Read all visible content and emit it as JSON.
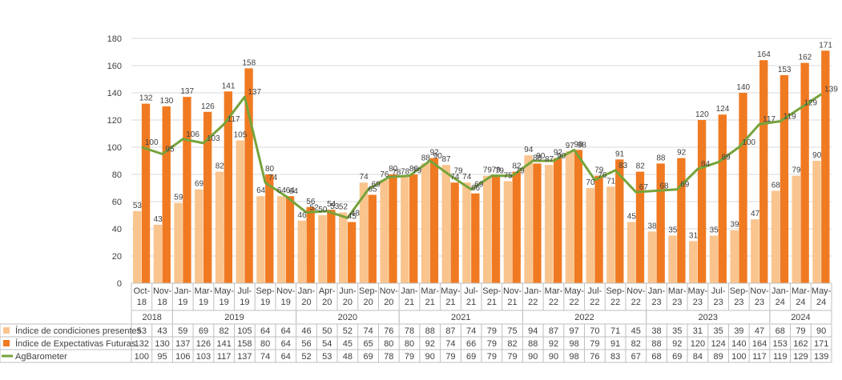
{
  "chart_data": {
    "type": "bar",
    "title": "",
    "xlabel": "",
    "ylabel": "",
    "ylim": [
      0,
      180
    ],
    "yticks": [
      0,
      20,
      40,
      60,
      80,
      100,
      120,
      140,
      160,
      180
    ],
    "grid": true,
    "categories": [
      [
        "Oct-",
        "18"
      ],
      [
        "Nov-",
        "18"
      ],
      [
        "Jan-",
        "19"
      ],
      [
        "Mar-",
        "19"
      ],
      [
        "May-",
        "19"
      ],
      [
        "Jul-",
        "19"
      ],
      [
        "Sep-",
        "19"
      ],
      [
        "Nov-",
        "19"
      ],
      [
        "Jan-",
        "20"
      ],
      [
        "Apr-",
        "20"
      ],
      [
        "Jun-",
        "20"
      ],
      [
        "Sep-",
        "20"
      ],
      [
        "Nov-",
        "20"
      ],
      [
        "Jan-",
        "21"
      ],
      [
        "Mar-",
        "21"
      ],
      [
        "May-",
        "21"
      ],
      [
        "Jul-",
        "21"
      ],
      [
        "Sep-",
        "21"
      ],
      [
        "Nov-",
        "21"
      ],
      [
        "Jan-",
        "22"
      ],
      [
        "Mar-",
        "22"
      ],
      [
        "May-",
        "22"
      ],
      [
        "Jul-",
        "22"
      ],
      [
        "Sep-",
        "22"
      ],
      [
        "Nov-",
        "22"
      ],
      [
        "Jan-",
        "23"
      ],
      [
        "Mar-",
        "23"
      ],
      [
        "May-",
        "23"
      ],
      [
        "Jul-",
        "23"
      ],
      [
        "Sep-",
        "23"
      ],
      [
        "Nov-",
        "23"
      ],
      [
        "Jan-",
        "24"
      ],
      [
        "Mar-",
        "24"
      ],
      [
        "May-",
        "24"
      ]
    ],
    "years": [
      {
        "label": "2018",
        "start": 0,
        "end": 1
      },
      {
        "label": "2019",
        "start": 2,
        "end": 7
      },
      {
        "label": "2020",
        "start": 8,
        "end": 12
      },
      {
        "label": "2021",
        "start": 13,
        "end": 18
      },
      {
        "label": "2022",
        "start": 19,
        "end": 24
      },
      {
        "label": "2023",
        "start": 25,
        "end": 30
      },
      {
        "label": "2024",
        "start": 31,
        "end": 33
      }
    ],
    "series": [
      {
        "name": "Índice de condiciones presentes",
        "type": "bar",
        "color": "#F9C48D",
        "values": [
          53,
          43,
          59,
          69,
          82,
          105,
          64,
          64,
          46,
          50,
          52,
          74,
          76,
          78,
          88,
          87,
          74,
          79,
          75,
          94,
          87,
          97,
          70,
          71,
          45,
          38,
          35,
          31,
          35,
          39,
          47,
          68,
          79,
          90
        ]
      },
      {
        "name": "Índice de Expectativas Futuras",
        "type": "bar",
        "color": "#F07A22",
        "values": [
          132,
          130,
          137,
          126,
          141,
          158,
          80,
          64,
          56,
          54,
          45,
          65,
          80,
          80,
          92,
          74,
          66,
          79,
          82,
          88,
          92,
          98,
          79,
          91,
          82,
          88,
          92,
          120,
          124,
          140,
          164,
          153,
          162,
          171
        ]
      },
      {
        "name": "AgBarometer",
        "type": "line",
        "color": "#76A33A",
        "values": [
          100,
          95,
          106,
          103,
          117,
          137,
          74,
          64,
          52,
          53,
          48,
          69,
          78,
          79,
          90,
          79,
          69,
          79,
          79,
          90,
          90,
          98,
          76,
          83,
          67,
          68,
          69,
          84,
          89,
          100,
          117,
          119,
          129,
          139
        ]
      }
    ]
  }
}
